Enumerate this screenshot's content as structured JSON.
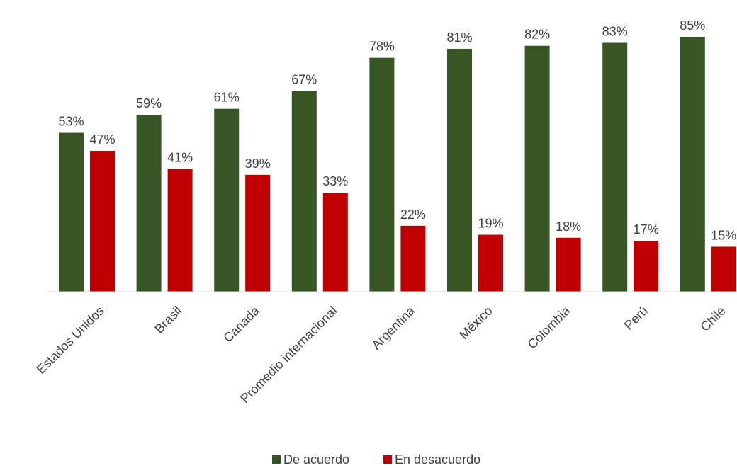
{
  "chart_data": {
    "type": "bar",
    "categories": [
      "Estados Unidos",
      "Brasil",
      "Canadá",
      "Promedio internacional",
      "Argentina",
      "México",
      "Colombia",
      "Perú",
      "Chile"
    ],
    "series": [
      {
        "name": "De acuerdo",
        "color": "#375623",
        "values": [
          53,
          59,
          61,
          67,
          78,
          81,
          82,
          83,
          85
        ],
        "labels": [
          "53%",
          "59%",
          "61%",
          "67%",
          "78%",
          "81%",
          "82%",
          "83%",
          "85%"
        ]
      },
      {
        "name": "En desacuerdo",
        "color": "#C00000",
        "values": [
          47,
          41,
          39,
          33,
          22,
          19,
          18,
          17,
          15
        ],
        "labels": [
          "47%",
          "41%",
          "39%",
          "33%",
          "22%",
          "19%",
          "18%",
          "17%",
          "15%"
        ]
      }
    ],
    "ylim": [
      0,
      100
    ],
    "grid": false,
    "legend_position": "bottom"
  }
}
